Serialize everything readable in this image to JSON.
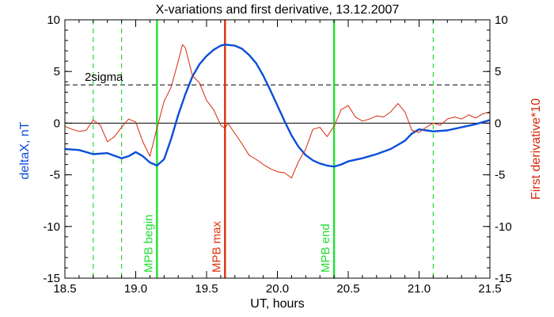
{
  "chart_data": {
    "type": "line",
    "title": "X-variations and first derivative, 13.12.2007",
    "xlabel": "UT, hours",
    "ylabel_left": "deltaX, nT",
    "ylabel_right": "First derivative*10",
    "xlim": [
      18.5,
      21.5
    ],
    "ylim": [
      -15,
      10
    ],
    "x_ticks": [
      "18.5",
      "19.0",
      "19.5",
      "20.0",
      "20.5",
      "21.0",
      "21.5"
    ],
    "y_ticks": [
      "-15",
      "-10",
      "-5",
      "0",
      "5",
      "10"
    ],
    "grid": false,
    "colors": {
      "deltaX": "#0b4fd6",
      "derivative": "#d42a0a",
      "mpb_edges": "#22e033",
      "mpb_max": "#e2300c",
      "threshold": "#000000"
    },
    "threshold": {
      "label": "2sigma",
      "value": 3.7
    },
    "zero_line": 0,
    "vertical_markers": [
      {
        "label": "MPB begin",
        "x": 19.15,
        "style": "solid",
        "color": "#22e033"
      },
      {
        "label": "MPB max",
        "x": 19.63,
        "style": "solid",
        "color": "#e2300c"
      },
      {
        "label": "MPB end",
        "x": 20.4,
        "style": "solid",
        "color": "#22e033"
      },
      {
        "x": 18.7,
        "style": "dashed",
        "color": "#22e033"
      },
      {
        "x": 18.9,
        "style": "dashed",
        "color": "#22e033"
      },
      {
        "x": 21.1,
        "style": "dashed",
        "color": "#22e033"
      }
    ],
    "series": [
      {
        "key": "deltaX",
        "x": [
          18.5,
          18.6,
          18.7,
          18.8,
          18.9,
          18.95,
          19.0,
          19.05,
          19.1,
          19.15,
          19.2,
          19.25,
          19.3,
          19.35,
          19.4,
          19.45,
          19.5,
          19.55,
          19.6,
          19.63,
          19.7,
          19.75,
          19.8,
          19.85,
          19.9,
          19.95,
          20.0,
          20.05,
          20.1,
          20.15,
          20.2,
          20.25,
          20.3,
          20.35,
          20.4,
          20.45,
          20.5,
          20.6,
          20.7,
          20.8,
          20.9,
          20.95,
          21.0,
          21.05,
          21.1,
          21.2,
          21.3,
          21.4,
          21.5
        ],
        "values": [
          -2.5,
          -2.6,
          -3.0,
          -2.9,
          -3.4,
          -3.2,
          -2.8,
          -3.2,
          -3.8,
          -4.1,
          -3.5,
          -1.5,
          0.8,
          2.8,
          4.5,
          5.7,
          6.5,
          7.1,
          7.5,
          7.6,
          7.5,
          7.2,
          6.6,
          5.8,
          4.6,
          3.2,
          1.7,
          0.2,
          -1.2,
          -2.3,
          -3.1,
          -3.6,
          -3.9,
          -4.1,
          -4.2,
          -4.0,
          -3.7,
          -3.4,
          -3.0,
          -2.5,
          -1.7,
          -1.0,
          -0.6,
          -0.7,
          -0.8,
          -0.7,
          -0.4,
          -0.1,
          0.3
        ]
      },
      {
        "key": "derivative",
        "x": [
          18.5,
          18.55,
          18.6,
          18.65,
          18.7,
          18.75,
          18.8,
          18.85,
          18.9,
          18.95,
          19.0,
          19.05,
          19.1,
          19.15,
          19.2,
          19.25,
          19.3,
          19.33,
          19.35,
          19.4,
          19.45,
          19.5,
          19.55,
          19.6,
          19.63,
          19.65,
          19.7,
          19.75,
          19.8,
          19.85,
          19.9,
          19.95,
          20.0,
          20.05,
          20.1,
          20.15,
          20.2,
          20.25,
          20.3,
          20.35,
          20.4,
          20.45,
          20.5,
          20.55,
          20.6,
          20.65,
          20.7,
          20.75,
          20.8,
          20.85,
          20.9,
          20.95,
          21.0,
          21.05,
          21.1,
          21.15,
          21.2,
          21.25,
          21.3,
          21.35,
          21.4,
          21.45,
          21.5
        ],
        "values": [
          -0.3,
          -0.6,
          -0.8,
          -0.7,
          0.3,
          -0.2,
          -1.8,
          -1.3,
          -0.4,
          0.4,
          0.1,
          -1.8,
          -3.2,
          -0.5,
          2.1,
          3.5,
          6.0,
          7.6,
          7.3,
          4.6,
          3.9,
          2.2,
          1.3,
          -0.2,
          -0.5,
          0.0,
          -1.0,
          -2.0,
          -3.1,
          -3.5,
          -4.0,
          -4.4,
          -4.7,
          -4.8,
          -5.3,
          -3.7,
          -2.5,
          -0.6,
          -0.4,
          -1.3,
          -0.3,
          1.3,
          1.7,
          0.6,
          0.2,
          0.4,
          0.7,
          0.6,
          1.1,
          1.9,
          1.1,
          -0.7,
          -0.9,
          -0.4,
          0.0,
          -0.2,
          0.4,
          0.6,
          0.4,
          0.8,
          0.5,
          0.9,
          1.1
        ]
      }
    ]
  }
}
